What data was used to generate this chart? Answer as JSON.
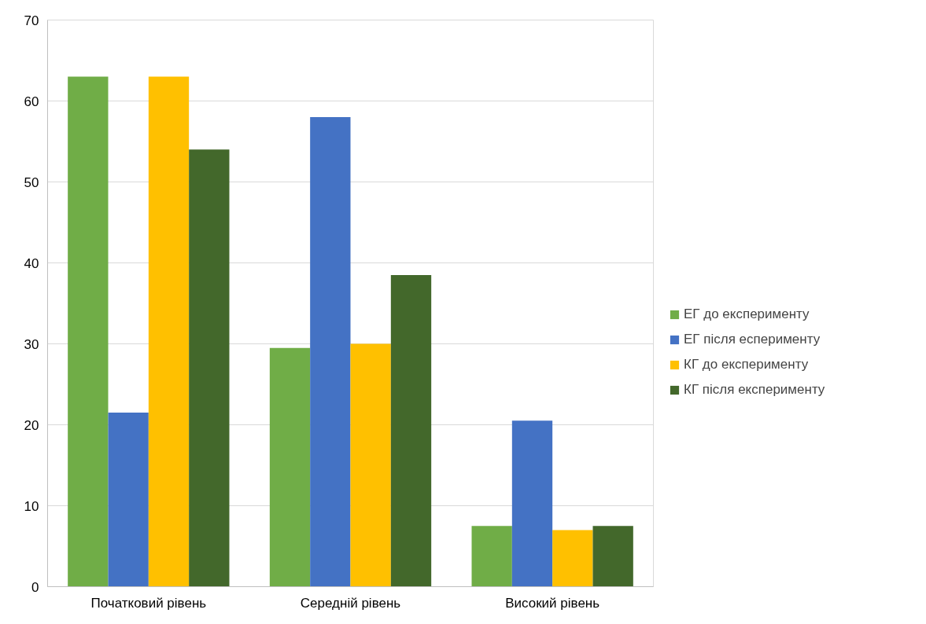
{
  "chart_data": {
    "type": "bar",
    "categories": [
      "Початковий рівень",
      "Середній рівень",
      "Високий рівень"
    ],
    "series": [
      {
        "name": "ЕГ до експерименту",
        "color": "#70ad47",
        "values": [
          63,
          29.5,
          7.5
        ]
      },
      {
        "name": "ЕГ після есперименту",
        "color": "#4472c4",
        "values": [
          21.5,
          58,
          20.5
        ]
      },
      {
        "name": "КГ до експерименту",
        "color": "#ffc000",
        "values": [
          63,
          30,
          7
        ]
      },
      {
        "name": "КГ після експерименту",
        "color": "#43682b",
        "values": [
          54,
          38.5,
          7.5
        ]
      }
    ],
    "ylim": [
      0,
      70
    ],
    "yticks": [
      0,
      10,
      20,
      30,
      40,
      50,
      60,
      70
    ],
    "grid": "y",
    "legend": "right"
  }
}
